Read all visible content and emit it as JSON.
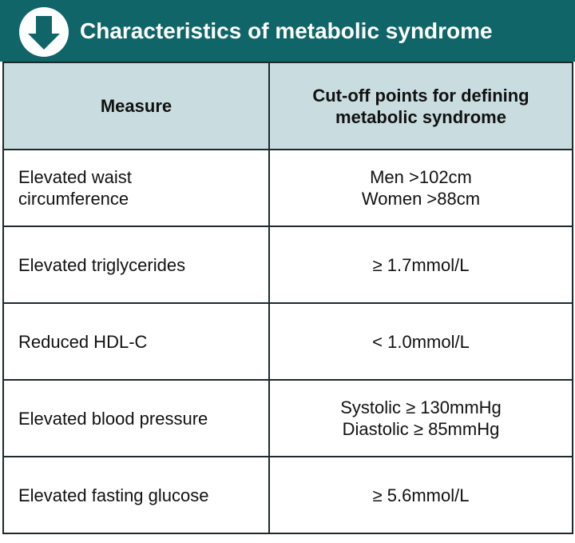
{
  "header": {
    "title": "Characteristics of metabolic syndrome"
  },
  "table": {
    "columns": [
      [
        "Measure"
      ],
      [
        "Cut-off points for defining",
        "metabolic syndrome"
      ]
    ],
    "rows": [
      [
        [
          "Elevated waist",
          "circumference"
        ],
        [
          "Men >102cm",
          "Women >88cm"
        ]
      ],
      [
        [
          "Elevated triglycerides"
        ],
        [
          "≥ 1.7mmol/L"
        ]
      ],
      [
        [
          "Reduced HDL-C"
        ],
        [
          "< 1.0mmol/L"
        ]
      ],
      [
        [
          "Elevated blood pressure"
        ],
        [
          "Systolic ≥ 130mmHg",
          "Diastolic ≥ 85mmHg"
        ]
      ],
      [
        [
          "Elevated fasting glucose"
        ],
        [
          "≥ 5.6mmol/L"
        ]
      ]
    ]
  }
}
